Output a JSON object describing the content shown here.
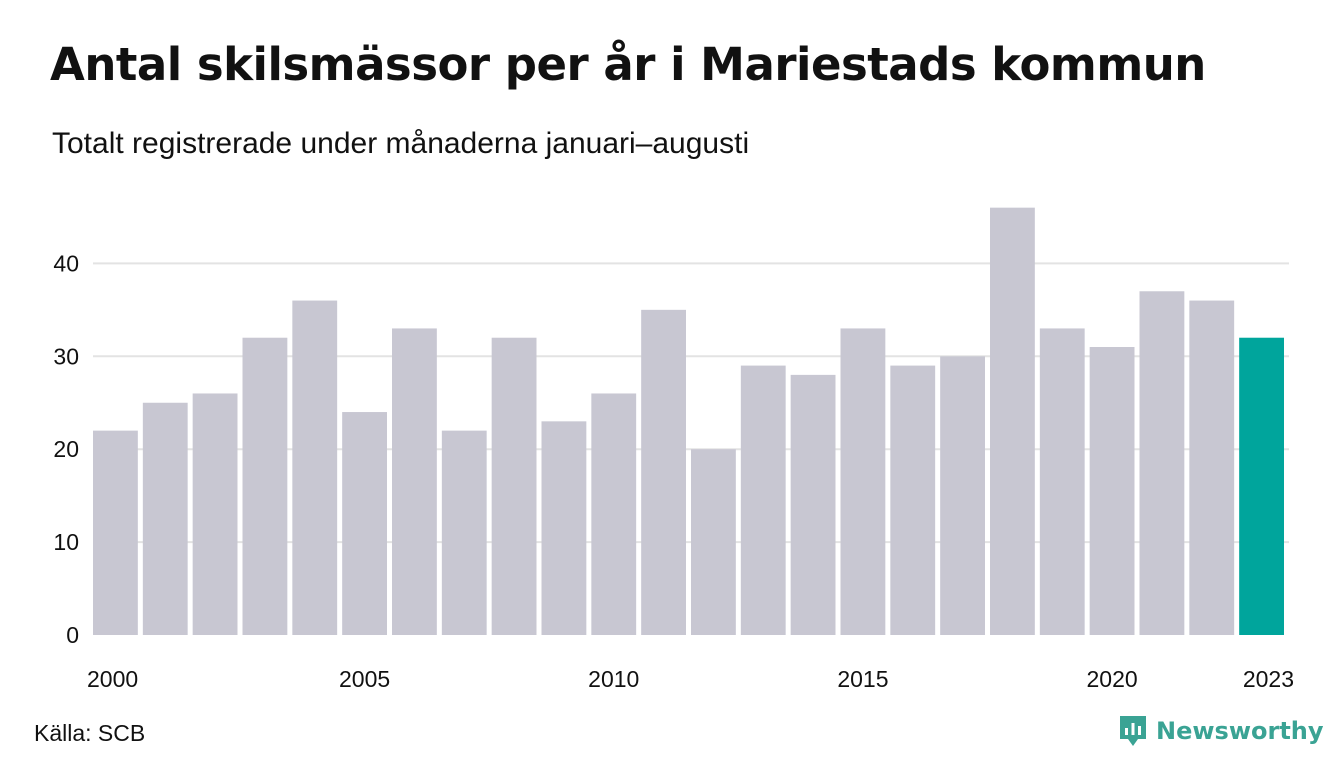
{
  "title": "Antal skilsmässor per år i Mariestads kommun",
  "subtitle": "Totalt registrerade under månaderna januari–augusti",
  "source": "Källa: SCB",
  "brand": "Newsworthy",
  "colors": {
    "bar": "#c8c7d2",
    "highlight": "#00a59c",
    "grid": "#e3e3e3",
    "brand": "#3aa394"
  },
  "chart_data": {
    "type": "bar",
    "title": "Antal skilsmässor per år i Mariestads kommun",
    "subtitle": "Totalt registrerade under månaderna januari–augusti",
    "xlabel": "",
    "ylabel": "",
    "categories": [
      2000,
      2001,
      2002,
      2003,
      2004,
      2005,
      2006,
      2007,
      2008,
      2009,
      2010,
      2011,
      2012,
      2013,
      2014,
      2015,
      2016,
      2017,
      2018,
      2019,
      2020,
      2021,
      2022,
      2023
    ],
    "values": [
      22,
      25,
      26,
      32,
      36,
      24,
      33,
      22,
      32,
      23,
      26,
      35,
      20,
      29,
      28,
      33,
      29,
      30,
      46,
      33,
      31,
      37,
      36,
      32
    ],
    "highlight_category": 2023,
    "x_tick_labels": [
      "2000",
      "2005",
      "2010",
      "2015",
      "2020",
      "2023"
    ],
    "y_ticks": [
      0,
      10,
      20,
      30,
      40
    ],
    "ylim": [
      0,
      46
    ],
    "grid": true,
    "legend": "none"
  }
}
